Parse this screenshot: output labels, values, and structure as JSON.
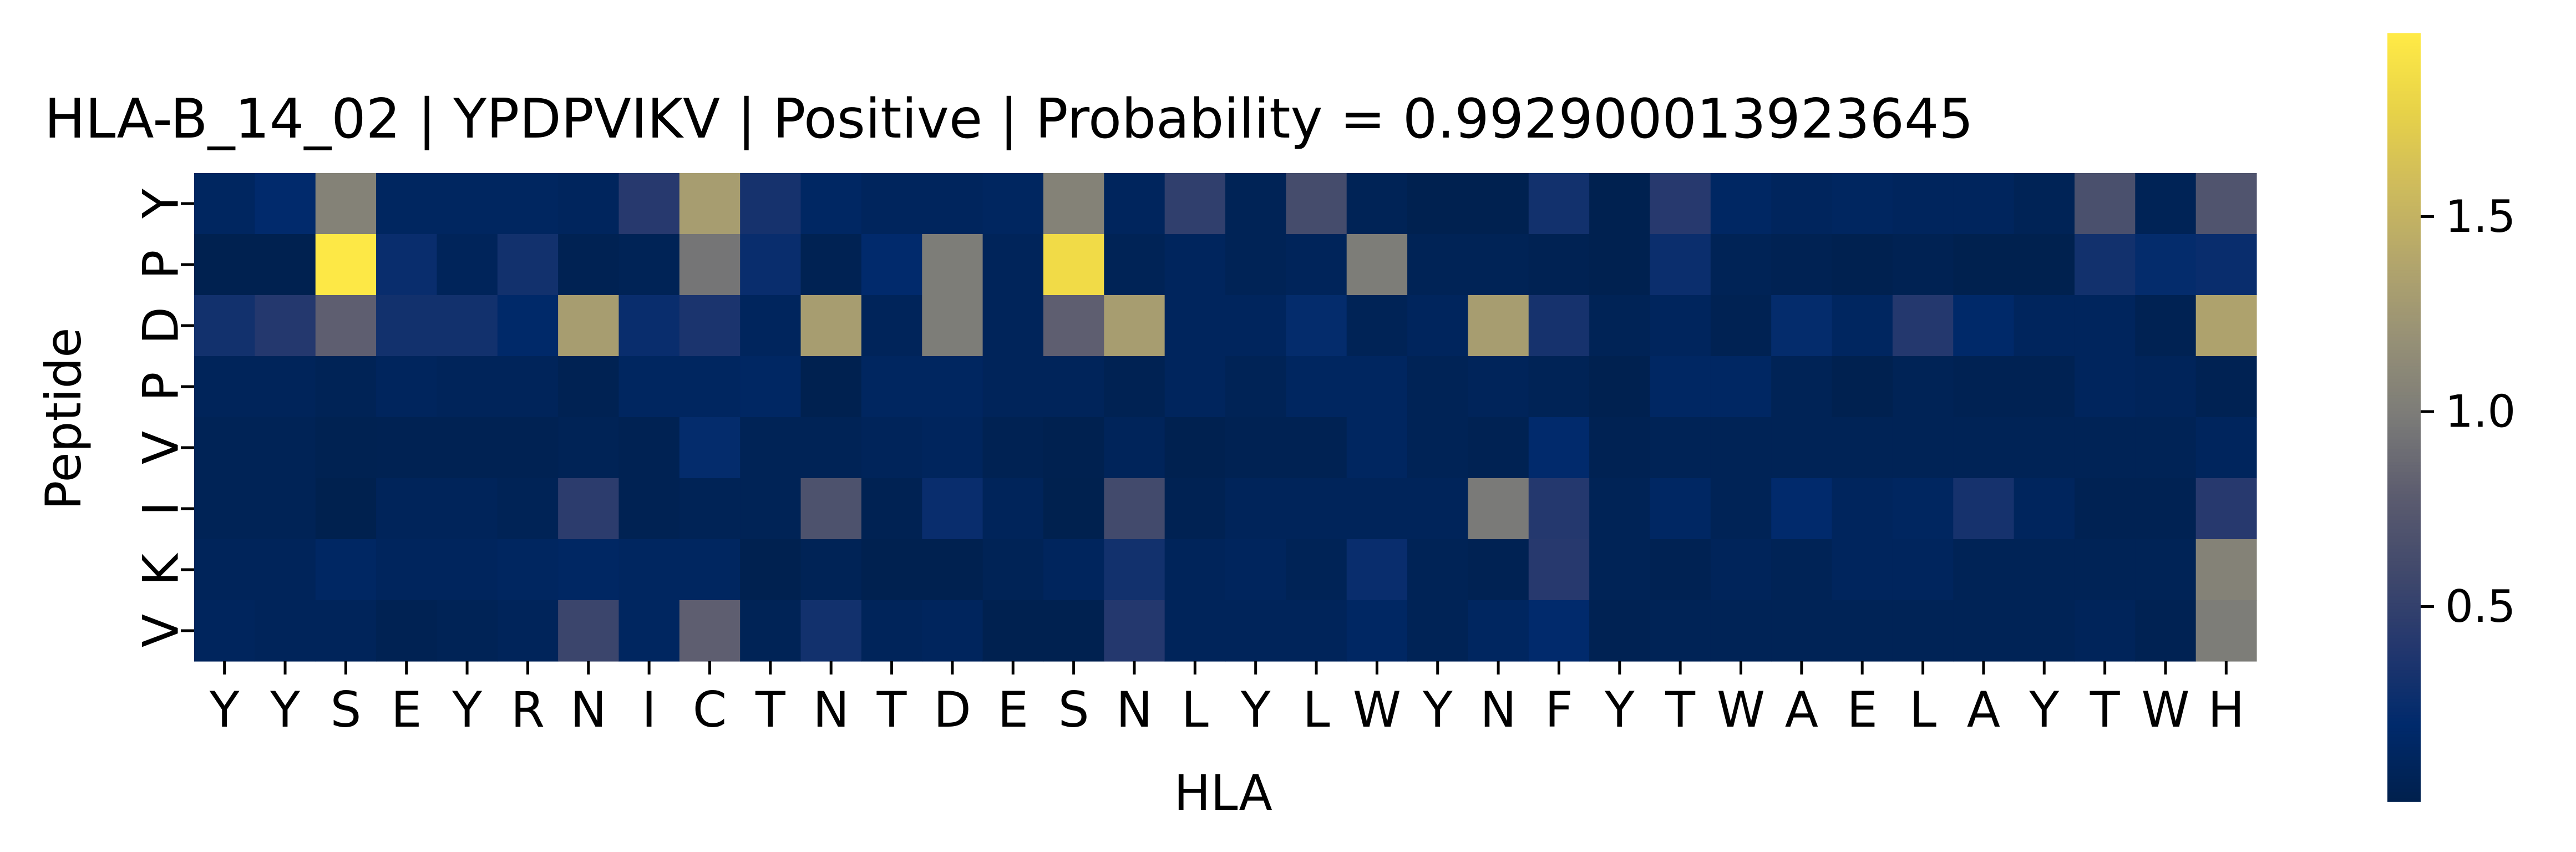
{
  "chart_data": {
    "type": "heatmap",
    "title": "HLA-B_14_02 | YPDPVIKV | Positive | Probability = 0.992900013923645",
    "xlabel": "HLA",
    "ylabel": "Peptide",
    "x_categories": [
      "Y",
      "Y",
      "S",
      "E",
      "Y",
      "R",
      "N",
      "I",
      "C",
      "T",
      "N",
      "T",
      "D",
      "E",
      "S",
      "N",
      "L",
      "Y",
      "L",
      "W",
      "Y",
      "N",
      "F",
      "Y",
      "T",
      "W",
      "A",
      "E",
      "L",
      "A",
      "Y",
      "T",
      "W",
      "H"
    ],
    "y_categories": [
      "Y",
      "P",
      "D",
      "P",
      "V",
      "I",
      "K",
      "V"
    ],
    "colormap": "cividis",
    "colorbar": {
      "min": 0.0,
      "max": 1.97,
      "ticks": [
        0.5,
        1.0,
        1.5
      ],
      "tick_labels": [
        "0.5",
        "1.0",
        "1.5"
      ]
    },
    "values": [
      [
        0.12,
        0.2,
        1.05,
        0.12,
        0.12,
        0.12,
        0.1,
        0.42,
        1.3,
        0.32,
        0.14,
        0.1,
        0.1,
        0.12,
        1.05,
        0.1,
        0.48,
        0.06,
        0.62,
        0.06,
        0.02,
        0.02,
        0.3,
        0.02,
        0.42,
        0.14,
        0.1,
        0.12,
        0.1,
        0.1,
        0.06,
        0.66,
        0.06,
        0.7
      ],
      [
        0.02,
        0.02,
        1.95,
        0.25,
        0.08,
        0.3,
        0.04,
        0.06,
        0.95,
        0.25,
        0.04,
        0.2,
        1.0,
        0.08,
        1.85,
        0.06,
        0.1,
        0.06,
        0.08,
        1.0,
        0.06,
        0.06,
        0.04,
        0.02,
        0.26,
        0.06,
        0.04,
        0.02,
        0.04,
        0.01,
        0.01,
        0.3,
        0.22,
        0.25
      ],
      [
        0.3,
        0.4,
        0.8,
        0.3,
        0.3,
        0.18,
        1.3,
        0.25,
        0.35,
        0.1,
        1.3,
        0.08,
        1.0,
        0.08,
        0.8,
        1.3,
        0.1,
        0.1,
        0.22,
        0.06,
        0.1,
        1.3,
        0.32,
        0.06,
        0.1,
        0.04,
        0.22,
        0.12,
        0.4,
        0.18,
        0.1,
        0.1,
        0.04,
        1.35
      ],
      [
        0.08,
        0.08,
        0.06,
        0.1,
        0.08,
        0.08,
        0.04,
        0.12,
        0.12,
        0.14,
        0.02,
        0.12,
        0.12,
        0.08,
        0.08,
        0.04,
        0.1,
        0.06,
        0.12,
        0.12,
        0.06,
        0.08,
        0.06,
        0.02,
        0.14,
        0.14,
        0.06,
        0.02,
        0.06,
        0.04,
        0.04,
        0.1,
        0.08,
        0.04
      ],
      [
        0.06,
        0.06,
        0.03,
        0.04,
        0.04,
        0.04,
        0.06,
        0.04,
        0.22,
        0.06,
        0.06,
        0.08,
        0.1,
        0.04,
        0.02,
        0.08,
        0.02,
        0.04,
        0.04,
        0.12,
        0.06,
        0.04,
        0.2,
        0.04,
        0.06,
        0.06,
        0.06,
        0.06,
        0.06,
        0.06,
        0.06,
        0.06,
        0.06,
        0.1
      ],
      [
        0.06,
        0.06,
        0.01,
        0.08,
        0.08,
        0.06,
        0.45,
        0.04,
        0.06,
        0.06,
        0.68,
        0.04,
        0.25,
        0.08,
        0.01,
        0.6,
        0.04,
        0.08,
        0.08,
        0.08,
        0.08,
        0.98,
        0.4,
        0.06,
        0.14,
        0.06,
        0.2,
        0.1,
        0.12,
        0.32,
        0.1,
        0.04,
        0.04,
        0.42
      ],
      [
        0.08,
        0.08,
        0.14,
        0.1,
        0.1,
        0.12,
        0.14,
        0.12,
        0.12,
        0.02,
        0.06,
        0.02,
        0.02,
        0.06,
        0.1,
        0.3,
        0.08,
        0.1,
        0.06,
        0.25,
        0.06,
        0.04,
        0.42,
        0.06,
        0.04,
        0.08,
        0.06,
        0.1,
        0.1,
        0.06,
        0.06,
        0.06,
        0.06,
        1.05
      ],
      [
        0.1,
        0.08,
        0.08,
        0.04,
        0.06,
        0.08,
        0.55,
        0.12,
        0.8,
        0.06,
        0.3,
        0.08,
        0.1,
        0.02,
        0.02,
        0.4,
        0.08,
        0.08,
        0.08,
        0.14,
        0.06,
        0.12,
        0.2,
        0.04,
        0.06,
        0.06,
        0.06,
        0.06,
        0.06,
        0.06,
        0.06,
        0.08,
        0.04,
        1.0
      ]
    ]
  }
}
